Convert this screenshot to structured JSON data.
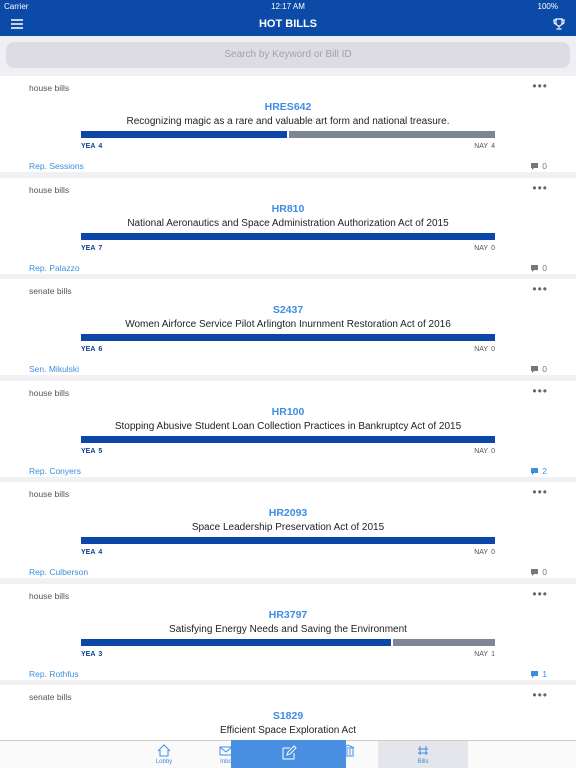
{
  "status_bar": {
    "carrier": "Carrier",
    "time": "12:17 AM",
    "battery": "100%"
  },
  "nav": {
    "title": "HOT BILLS"
  },
  "search": {
    "placeholder": "Search by Keyword or Bill ID"
  },
  "bills": [
    {
      "category": "house bills",
      "id": "HRES642",
      "title": "Recognizing magic as a rare and valuable art form and national treasure.",
      "yea_label": "YEA",
      "yea": 4,
      "nay_label": "NAY",
      "nay": 4,
      "sponsor": "Rep. Sessions",
      "comments": 0
    },
    {
      "category": "house bills",
      "id": "HR810",
      "title": "National Aeronautics and Space Administration Authorization Act of 2015",
      "yea_label": "YEA",
      "yea": 7,
      "nay_label": "NAY",
      "nay": 0,
      "sponsor": "Rep. Palazzo",
      "comments": 0
    },
    {
      "category": "senate bills",
      "id": "S2437",
      "title": "Women Airforce Service Pilot Arlington Inurnment Restoration Act of 2016",
      "yea_label": "YEA",
      "yea": 6,
      "nay_label": "NAY",
      "nay": 0,
      "sponsor": "Sen. Mikulski",
      "comments": 0
    },
    {
      "category": "house bills",
      "id": "HR100",
      "title": "Stopping Abusive Student Loan Collection Practices in Bankruptcy Act of 2015",
      "yea_label": "YEA",
      "yea": 5,
      "nay_label": "NAY",
      "nay": 0,
      "sponsor": "Rep. Conyers",
      "comments": 2
    },
    {
      "category": "house bills",
      "id": "HR2093",
      "title": "Space Leadership Preservation Act of 2015",
      "yea_label": "YEA",
      "yea": 4,
      "nay_label": "NAY",
      "nay": 0,
      "sponsor": "Rep. Culberson",
      "comments": 0
    },
    {
      "category": "house bills",
      "id": "HR3797",
      "title": "Satisfying Energy Needs and Saving the Environment",
      "yea_label": "YEA",
      "yea": 3,
      "nay_label": "NAY",
      "nay": 1,
      "sponsor": "Rep. Rothfus",
      "comments": 1
    },
    {
      "category": "senate bills",
      "id": "S1829",
      "title": "Efficient Space Exploration Act"
    }
  ],
  "tabs": [
    "Lobby",
    "Inbo",
    "Bills"
  ]
}
